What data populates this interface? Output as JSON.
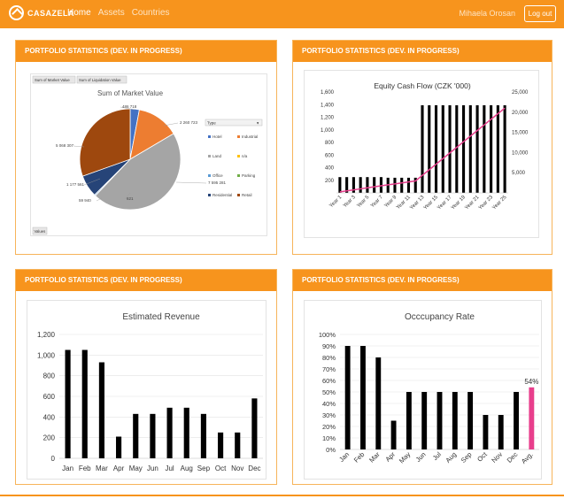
{
  "header": {
    "brand": "CASAZELA",
    "nav": [
      {
        "label": "Home",
        "active": true
      },
      {
        "label": "Assets",
        "active": false
      },
      {
        "label": "Countries",
        "active": false
      }
    ],
    "user": "Mihaela Orosan",
    "logout_label": "Log out",
    "accent": "#f7941d"
  },
  "panels": [
    {
      "title": "PORTFOLIO STATISTICS (DEV. IN PROGRESS)"
    },
    {
      "title": "PORTFOLIO STATISTICS (DEV. IN PROGRESS)"
    },
    {
      "title": "PORTFOLIO STATISTICS (DEV. IN PROGRESS)"
    },
    {
      "title": "PORTFOLIO STATISTICS (DEV. IN PROGRESS)"
    }
  ],
  "pivot": {
    "field_buttons": [
      "Sum of Market Value",
      "Sum of Liquidation Value"
    ],
    "filter_label": "Type",
    "values_label": "Values"
  },
  "chart_data": [
    {
      "type": "pie",
      "title": "Sum of Market Value",
      "slices": [
        {
          "label": "Hotel",
          "value": 486718,
          "color": "#4472c4"
        },
        {
          "label": "Industrial",
          "value": 2260723,
          "color": "#ed7d31"
        },
        {
          "label": "Land",
          "value": 0,
          "color": "#a5a5a5"
        },
        {
          "label": "n/a",
          "value": 0,
          "color": "#ffc000"
        },
        {
          "label": "Office",
          "value": 7595281,
          "color": "#a5a5a5"
        },
        {
          "label": "Parking",
          "value": 0,
          "color": "#ffc000"
        },
        {
          "label": "Residential",
          "value": 59940,
          "color": "#5b9bd5"
        },
        {
          "label": "Residential",
          "value": 621,
          "color": "#70ad47"
        },
        {
          "label": "Retail",
          "value": 1177561,
          "color": "#264478"
        },
        {
          "label": "Retail",
          "value": 5068307,
          "color": "#9e480e"
        }
      ],
      "data_labels": [
        "486 718",
        "2 260 723",
        "7 595 281",
        "59 940",
        "621",
        "1 177 561",
        "5 068 307"
      ],
      "legend": [
        {
          "label": "Hotel",
          "color": "#4472c4"
        },
        {
          "label": "Industrial",
          "color": "#ed7d31"
        },
        {
          "label": "Land",
          "color": "#a5a5a5"
        },
        {
          "label": "n/a",
          "color": "#ffc000"
        },
        {
          "label": "Office",
          "color": "#5b9bd5"
        },
        {
          "label": "Parking",
          "color": "#70ad47"
        },
        {
          "label": "Residential",
          "color": "#264478"
        },
        {
          "label": "Retail",
          "color": "#9e480e"
        }
      ],
      "legend_position": "right"
    },
    {
      "type": "bar",
      "title": "Equity Cash Flow (CZK '000)",
      "categories": [
        "Year 1",
        "Year 2",
        "Year 3",
        "Year 4",
        "Year 5",
        "Year 6",
        "Year 7",
        "Year 8",
        "Year 9",
        "Year 10",
        "Year 11",
        "Year 12",
        "Year 13",
        "Year 14",
        "Year 15",
        "Year 16",
        "Year 17",
        "Year 18",
        "Year 19",
        "Year 20",
        "Year 21",
        "Year 22",
        "Year 23",
        "Year 24",
        "Year 25"
      ],
      "tick_labels": [
        "Year 1",
        "Year 3",
        "Year 5",
        "Year 7",
        "Year 9",
        "Year 11",
        "Year 13",
        "Year 15",
        "Year 17",
        "Year 19",
        "Year 21",
        "Year 23",
        "Year 25"
      ],
      "series": [
        {
          "kind": "bar",
          "axis": "left",
          "color": "#000000",
          "values": [
            250,
            250,
            250,
            250,
            250,
            250,
            250,
            240,
            240,
            240,
            240,
            240,
            1390,
            1390,
            1390,
            1390,
            1390,
            1390,
            1390,
            1390,
            1390,
            1390,
            1390,
            1390,
            1390
          ]
        },
        {
          "kind": "line",
          "axis": "right",
          "color": "#e83e8c",
          "values": [
            250,
            500,
            750,
            1000,
            1250,
            1500,
            1750,
            1990,
            2230,
            2470,
            2710,
            2950,
            4340,
            5730,
            7120,
            8510,
            9900,
            11290,
            12680,
            14070,
            15460,
            16850,
            18240,
            19630,
            21020
          ]
        }
      ],
      "ylim": [
        0,
        1600
      ],
      "yticks": [
        200,
        400,
        600,
        800,
        1000,
        1200,
        1400,
        1600
      ],
      "y2lim": [
        0,
        25000
      ],
      "y2ticks": [
        5000,
        10000,
        15000,
        20000,
        25000
      ],
      "ytick_labels": [
        "200",
        "400",
        "600",
        "800",
        "1,000",
        "1,200",
        "1,400",
        "1,600"
      ],
      "y2tick_labels": [
        "5,000",
        "10,000",
        "15,000",
        "20,000",
        "25,000"
      ],
      "grid": true
    },
    {
      "type": "bar",
      "title": "Estimated Revenue",
      "categories": [
        "Jan",
        "Feb",
        "Mar",
        "Apr",
        "May",
        "Jun",
        "Jul",
        "Aug",
        "Sep",
        "Oct",
        "Nov",
        "Dec"
      ],
      "values": [
        1050,
        1050,
        930,
        210,
        430,
        430,
        490,
        490,
        430,
        250,
        250,
        580
      ],
      "ylim": [
        0,
        1200
      ],
      "yticks": [
        0,
        200,
        400,
        600,
        800,
        1000,
        1200
      ],
      "ytick_labels": [
        "0",
        "200",
        "400",
        "600",
        "800",
        "1,000",
        "1,200"
      ],
      "grid": true
    },
    {
      "type": "bar",
      "title": "Occcupancy Rate",
      "categories": [
        "Jan",
        "Feb",
        "Mar",
        "Apr",
        "May",
        "Jun",
        "Jul",
        "Aug",
        "Sep",
        "Oct",
        "Nov",
        "Dec",
        "Avg."
      ],
      "values": [
        90,
        90,
        80,
        25,
        50,
        50,
        50,
        50,
        50,
        30,
        30,
        50,
        54
      ],
      "colors": [
        "#000",
        "#000",
        "#000",
        "#000",
        "#000",
        "#000",
        "#000",
        "#000",
        "#000",
        "#000",
        "#000",
        "#000",
        "#e83e8c"
      ],
      "highlight_label": "54%",
      "ylim": [
        0,
        100
      ],
      "yticks": [
        0,
        10,
        20,
        30,
        40,
        50,
        60,
        70,
        80,
        90,
        100
      ],
      "ytick_labels": [
        "0%",
        "10%",
        "20%",
        "30%",
        "40%",
        "50%",
        "60%",
        "70%",
        "80%",
        "90%",
        "100%"
      ],
      "grid": true
    }
  ]
}
